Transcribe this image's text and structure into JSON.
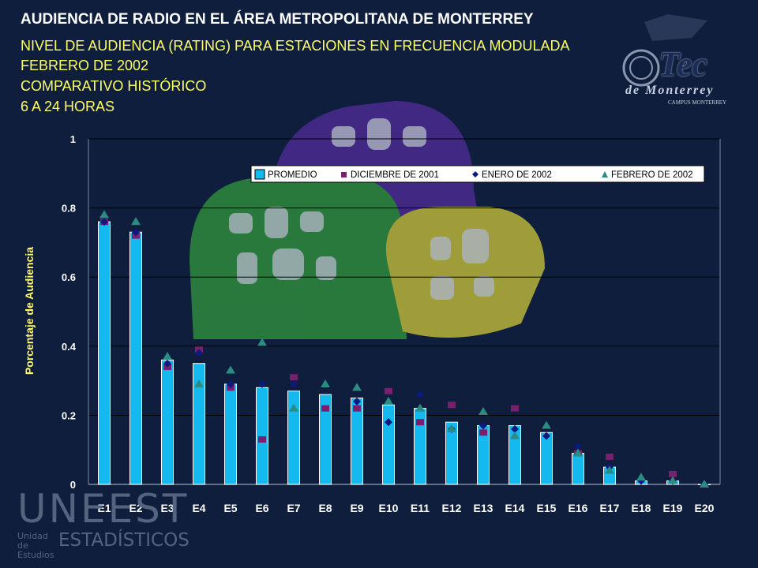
{
  "header": {
    "title": "AUDIENCIA DE RADIO EN EL ÁREA METROPOLITANA DE MONTERREY",
    "subtitle_lines": [
      "NIVEL DE AUDIENCIA (RATING) PARA ESTACIONES EN FRECUENCIA MODULADA",
      "FEBRERO DE 2002",
      "COMPARATIVO HISTÓRICO",
      "6 A 24 HORAS"
    ]
  },
  "logos": {
    "tec": {
      "name": "Tec",
      "line2": "de Monterrey",
      "line3": "CAMPUS MONTERREY"
    },
    "uneest": {
      "name": "UNEEST",
      "line1": "Unidad de Estudios",
      "line2": "ESTADÍSTICOS"
    }
  },
  "colors": {
    "background": "#0e1e3c",
    "bar": "#14b9f0",
    "dic": "#7a1f6e",
    "ene": "#0c1a80",
    "feb": "#2a8c82",
    "title": "#ffffff",
    "subtitle": "#ffff66"
  },
  "chart_data": {
    "type": "bar",
    "ylabel": "Porcentaje de Audiencia",
    "ylim": [
      0,
      1
    ],
    "yticks": [
      "0",
      "0.2",
      "0.4",
      "0.6",
      "0.8",
      "1"
    ],
    "grid": true,
    "legend_position": "top",
    "categories": [
      "E1",
      "E2",
      "E3",
      "E4",
      "E5",
      "E6",
      "E7",
      "E8",
      "E9",
      "E10",
      "E11",
      "E12",
      "E13",
      "E14",
      "E15",
      "E16",
      "E17",
      "E18",
      "E19",
      "E20"
    ],
    "series": [
      {
        "name": "PROMEDIO",
        "kind": "bar",
        "marker": "square",
        "values": [
          0.76,
          0.73,
          0.36,
          0.35,
          0.29,
          0.28,
          0.27,
          0.26,
          0.25,
          0.23,
          0.22,
          0.18,
          0.17,
          0.17,
          0.15,
          0.09,
          0.05,
          0.01,
          0.01,
          0.0
        ]
      },
      {
        "name": "DICIEMBRE  DE 2001",
        "kind": "marker",
        "marker": "square",
        "values": [
          0.76,
          0.72,
          0.34,
          0.39,
          0.28,
          0.13,
          0.31,
          0.22,
          0.22,
          0.27,
          0.18,
          0.23,
          0.15,
          0.22,
          null,
          0.09,
          0.08,
          null,
          0.03,
          null
        ]
      },
      {
        "name": "ENERO DE 2002",
        "kind": "marker",
        "marker": "diamond",
        "values": [
          0.76,
          0.73,
          0.35,
          0.38,
          0.29,
          0.29,
          0.29,
          null,
          0.24,
          0.18,
          0.26,
          0.16,
          0.17,
          0.16,
          0.14,
          0.11,
          0.05,
          0.01,
          0.01,
          0.0
        ]
      },
      {
        "name": "FEBRERO DE 2002",
        "kind": "marker",
        "marker": "triangle",
        "values": [
          0.78,
          0.76,
          0.37,
          0.29,
          0.33,
          0.41,
          0.22,
          0.29,
          0.28,
          0.24,
          0.22,
          0.16,
          0.21,
          0.14,
          0.17,
          0.09,
          0.04,
          0.02,
          0.01,
          0.0
        ]
      }
    ]
  }
}
